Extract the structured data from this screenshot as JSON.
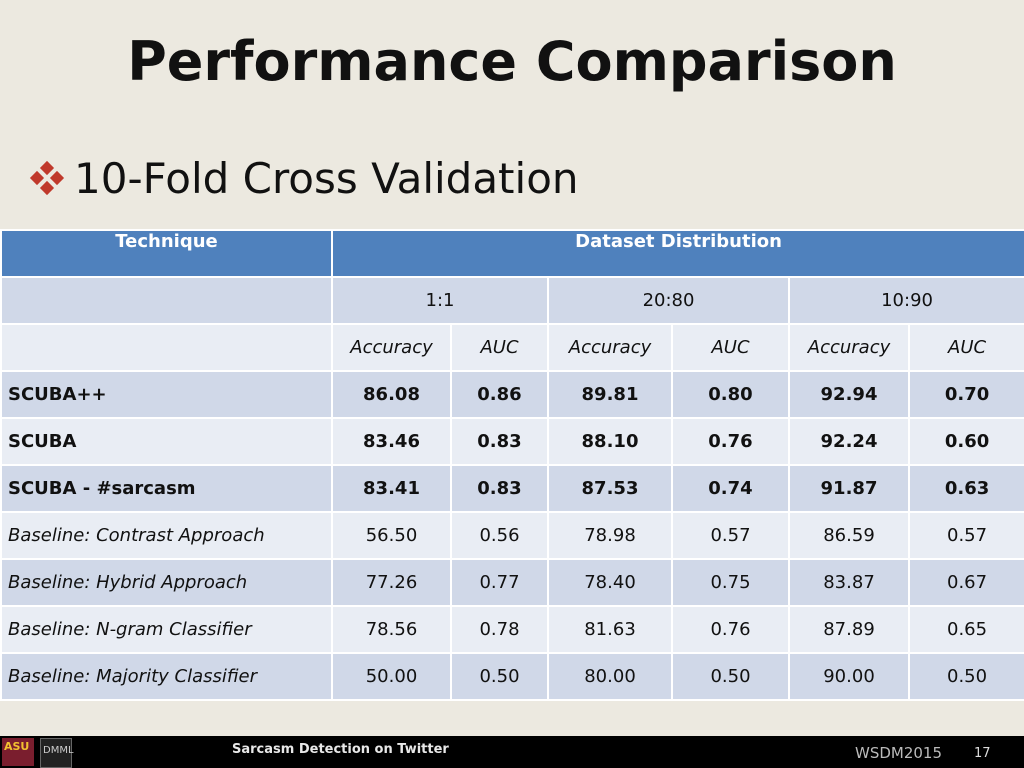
{
  "slide": {
    "title": "Performance Comparison",
    "bullet": "10-Fold Cross Validation"
  },
  "table": {
    "technique_header": "Technique",
    "distribution_header": "Dataset Distribution",
    "ratios": [
      "1:1",
      "20:80",
      "10:90"
    ],
    "metric_labels": [
      "Accuracy",
      "AUC",
      "Accuracy",
      "AUC",
      "Accuracy",
      "AUC"
    ],
    "rows": [
      {
        "name": "SCUBA++",
        "style": "bold",
        "values": [
          "86.08",
          "0.86",
          "89.81",
          "0.80",
          "92.94",
          "0.70"
        ]
      },
      {
        "name": "SCUBA",
        "style": "bold",
        "values": [
          "83.46",
          "0.83",
          "88.10",
          "0.76",
          "92.24",
          "0.60"
        ]
      },
      {
        "name": "SCUBA - #sarcasm",
        "style": "bold",
        "values": [
          "83.41",
          "0.83",
          "87.53",
          "0.74",
          "91.87",
          "0.63"
        ]
      },
      {
        "name": "Baseline: Contrast Approach",
        "style": "italic",
        "values": [
          "56.50",
          "0.56",
          "78.98",
          "0.57",
          "86.59",
          "0.57"
        ]
      },
      {
        "name": "Baseline: Hybrid Approach",
        "style": "italic",
        "values": [
          "77.26",
          "0.77",
          "78.40",
          "0.75",
          "83.87",
          "0.67"
        ]
      },
      {
        "name": "Baseline: N-gram Classifier",
        "style": "italic",
        "values": [
          "78.56",
          "0.78",
          "81.63",
          "0.76",
          "87.89",
          "0.65"
        ]
      },
      {
        "name": "Baseline: Majority Classifier",
        "style": "italic",
        "values": [
          "50.00",
          "0.50",
          "80.00",
          "0.50",
          "90.00",
          "0.50"
        ]
      }
    ]
  },
  "footer": {
    "logo_left": "ASU",
    "logo_right": "DMML",
    "center_text": "Sarcasm Detection on Twitter",
    "right_text": "WSDM2015",
    "page_number": "17"
  },
  "colors": {
    "header_blue": "#4f81bd",
    "row_dark": "#d0d8e8",
    "row_light": "#e9edf4",
    "background": "#ece9e0",
    "bullet_red": "#c0392b"
  }
}
